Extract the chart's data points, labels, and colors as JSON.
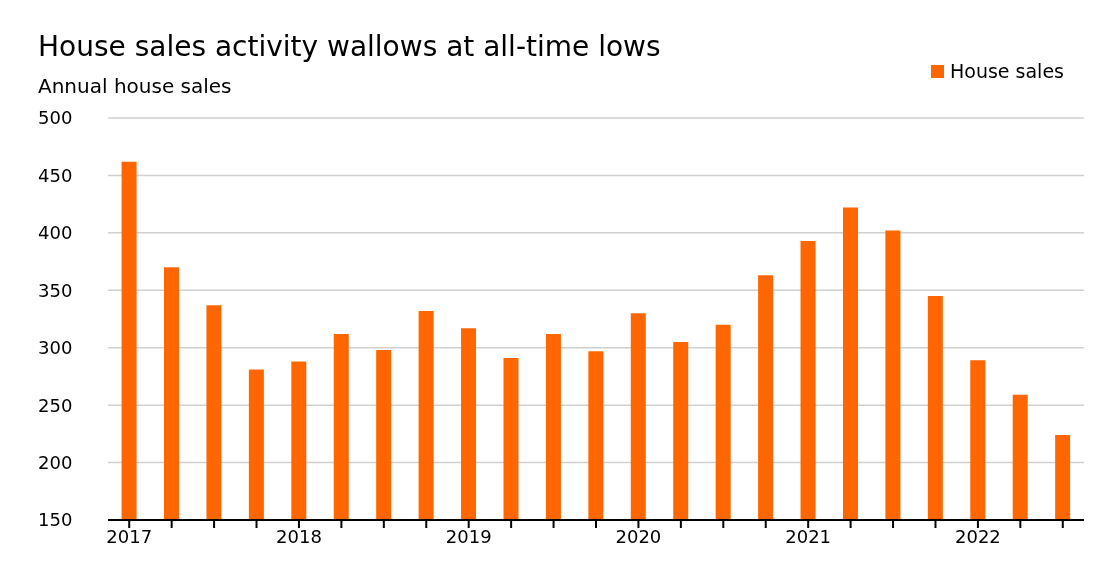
{
  "chart_data": {
    "type": "bar",
    "title": "House sales activity wallows at all-time lows",
    "subtitle": "Annual house sales",
    "categories": [
      "2017",
      null,
      null,
      null,
      "2018",
      null,
      null,
      null,
      "2019",
      null,
      null,
      null,
      "2020",
      null,
      null,
      null,
      "2021",
      null,
      null,
      null,
      "2022",
      null,
      null
    ],
    "series": [
      {
        "name": "House sales",
        "color": "#ff6600",
        "values": [
          462,
          370,
          337,
          281,
          288,
          312,
          298,
          332,
          317,
          291,
          312,
          297,
          330,
          305,
          320,
          363,
          393,
          422,
          402,
          345,
          289,
          259,
          224
        ]
      }
    ],
    "ylim": [
      150,
      500
    ],
    "yticks": [
      150,
      200,
      250,
      300,
      350,
      400,
      450,
      500
    ],
    "grid": "y",
    "legend": "top right"
  }
}
